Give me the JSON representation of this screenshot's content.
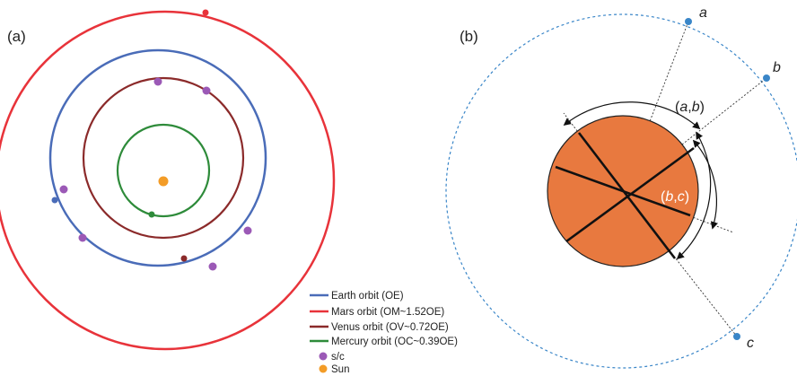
{
  "panels": {
    "a": {
      "label": "(a)"
    },
    "b": {
      "label": "(b)"
    }
  },
  "legend": {
    "items": [
      {
        "label": "Earth orbit (OE)",
        "color": "#4a6cb8",
        "marker": "line"
      },
      {
        "label": "Mars orbit (OM~1.52OE)",
        "color": "#e8333a",
        "marker": "line"
      },
      {
        "label": "Venus orbit (OV~0.72OE)",
        "color": "#8b2a2a",
        "marker": "line"
      },
      {
        "label": "Mercury orbit (OC~0.39OE)",
        "color": "#2e8b3a",
        "marker": "line"
      },
      {
        "label": "s/c",
        "color": "#9b59b6",
        "marker": "dot"
      },
      {
        "label": "Sun",
        "color": "#f39c27",
        "marker": "dot"
      }
    ]
  },
  "diagram_b": {
    "points": [
      "a",
      "b",
      "c"
    ],
    "arc_labels": {
      "ab_open": "(",
      "ab_a": "a",
      "ab_comma": ",",
      "ab_b": "b",
      "ab_close": ")",
      "bc_open": "(",
      "bc_b": "b",
      "bc_comma": ",",
      "bc_c": "c",
      "bc_close": ")"
    },
    "disk_color": "#e8793f",
    "point_color": "#3a86c8"
  }
}
